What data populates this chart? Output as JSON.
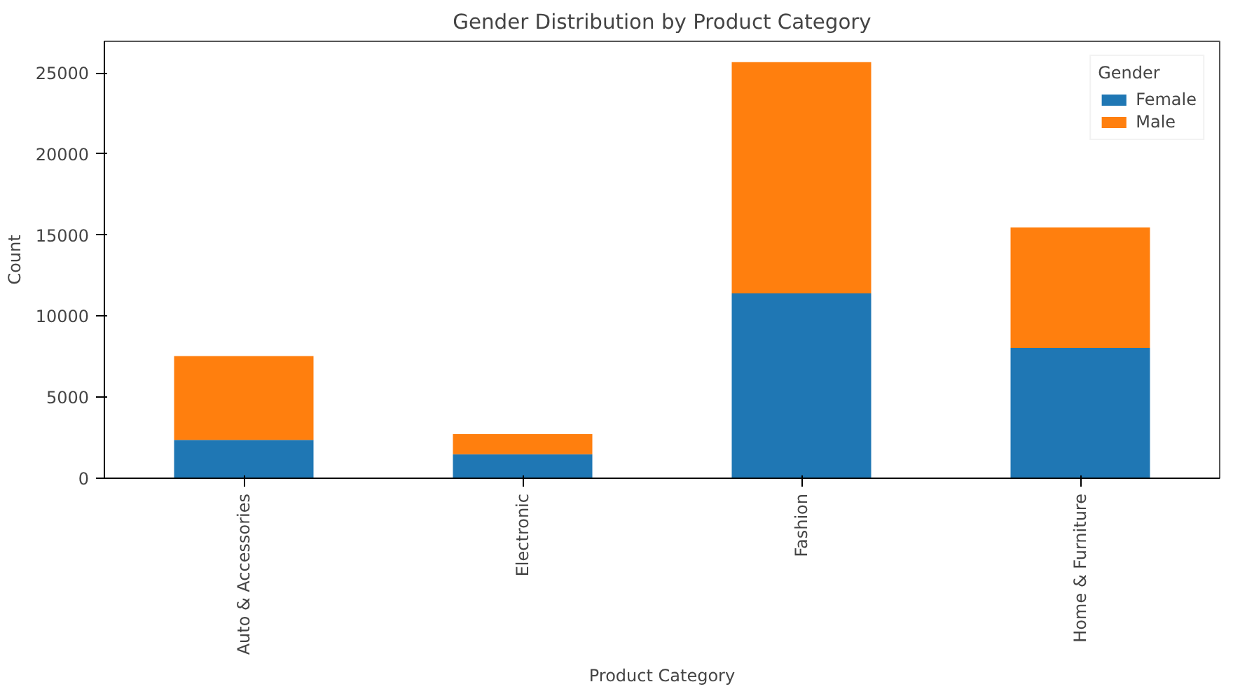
{
  "chart_data": {
    "type": "bar",
    "title": "Gender Distribution by Product Category",
    "xlabel": "Product Category",
    "ylabel": "Count",
    "legend_title": "Gender",
    "categories": [
      "Auto & Accessories",
      "Electronic",
      "Fashion",
      "Home & Furniture"
    ],
    "series": [
      {
        "name": "Female",
        "color": "#1f77b4",
        "values": [
          2360,
          1480,
          11400,
          8030
        ]
      },
      {
        "name": "Male",
        "color": "#ff7f0e",
        "values": [
          5180,
          1240,
          14270,
          7440
        ]
      }
    ],
    "stacked": true,
    "ylim": [
      0,
      26950
    ],
    "yticks": [
      0,
      5000,
      10000,
      15000,
      20000,
      25000
    ],
    "grid": false,
    "legend": "top right"
  }
}
